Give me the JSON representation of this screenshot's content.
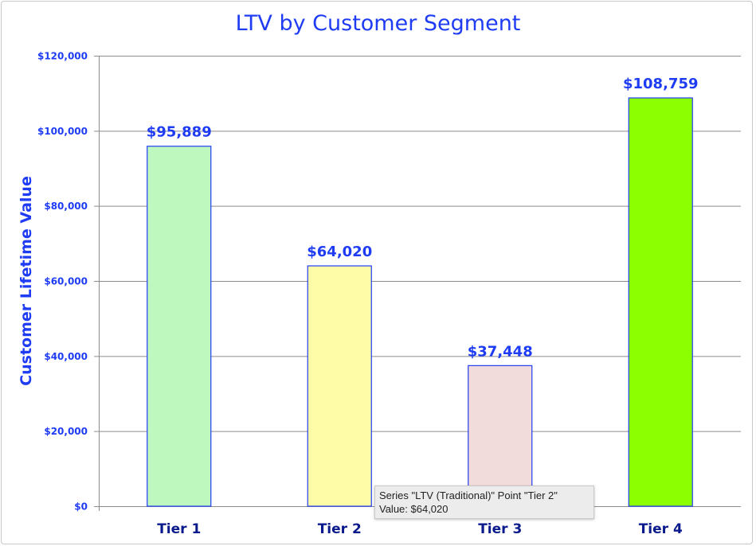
{
  "chart_data": {
    "type": "bar",
    "title": "LTV by Customer Segment",
    "xlabel": "",
    "ylabel": "Customer Lifetime Value",
    "categories": [
      "Tier 1",
      "Tier 2",
      "Tier 3",
      "Tier 4"
    ],
    "values": [
      95889,
      64020,
      37448,
      108759
    ],
    "data_labels": [
      "$95,889",
      "$64,020",
      "$37,448",
      "$108,759"
    ],
    "bar_colors": [
      "#bff8bf",
      "#fffca8",
      "#f1dbdb",
      "#8cff00"
    ],
    "bar_border_color": "#1f3cf5",
    "ylim": [
      0,
      120000
    ],
    "yticks": [
      0,
      20000,
      40000,
      60000,
      80000,
      100000,
      120000
    ],
    "ytick_labels": [
      "$0",
      "$20,000",
      "$40,000",
      "$60,000",
      "$80,000",
      "$100,000",
      "$120,000"
    ],
    "grid": true,
    "legend": "none"
  },
  "tooltip": {
    "line1": "Series \"LTV (Traditional)\" Point \"Tier 2\"",
    "line2": "Value: $64,020"
  }
}
